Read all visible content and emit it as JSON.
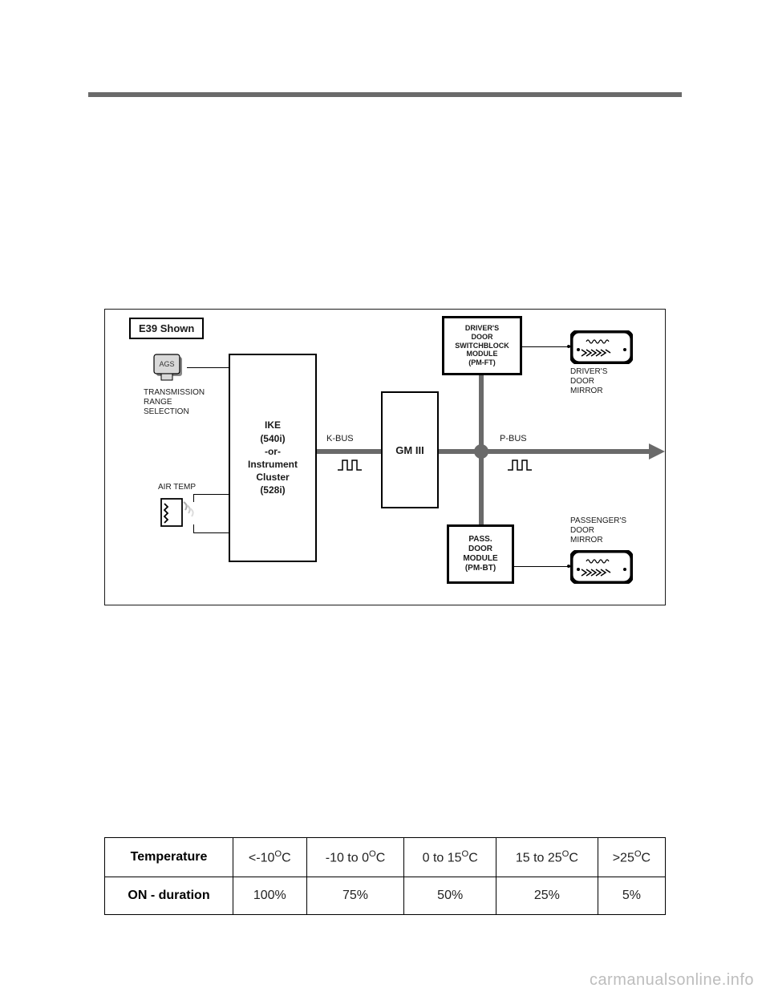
{
  "diagram": {
    "title": "E39 Shown",
    "ags": {
      "label": "AGS",
      "caption": "TRANSMISSION\nRANGE\nSELECTION"
    },
    "airtemp_label": "AIR TEMP",
    "ike_label": "IKE\n(540i)\n-or-\nInstrument\nCluster\n(528i)",
    "kbus_label": "K-BUS",
    "gm_label": "GM III",
    "pbus_label": "P-BUS",
    "driver_block": "DRIVER'S\nDOOR\nSWITCHBLOCK\nMODULE\n(PM-FT)",
    "pass_block": "PASS.\nDOOR\nMODULE\n(PM-BT)",
    "driver_mirror_label": "DRIVER'S\nDOOR\nMIRROR",
    "pass_mirror_label": "PASSENGER'S\nDOOR\nMIRROR",
    "colors": {
      "bus": "#6a6a6a",
      "box_border": "#000000",
      "text": "#1a1a1a",
      "table_border": "#000000"
    }
  },
  "table": {
    "row_headers": [
      "Temperature",
      "ON - duration"
    ],
    "cols": [
      {
        "temp": "<-10°C",
        "dur": "100%"
      },
      {
        "temp": "-10 to 0°C",
        "dur": "75%"
      },
      {
        "temp": "0 to 15°C",
        "dur": "50%"
      },
      {
        "temp": "15 to 25°C",
        "dur": "25%"
      },
      {
        "temp": ">25°C",
        "dur": "5%"
      }
    ]
  },
  "watermark": "carmanualsonline.info"
}
